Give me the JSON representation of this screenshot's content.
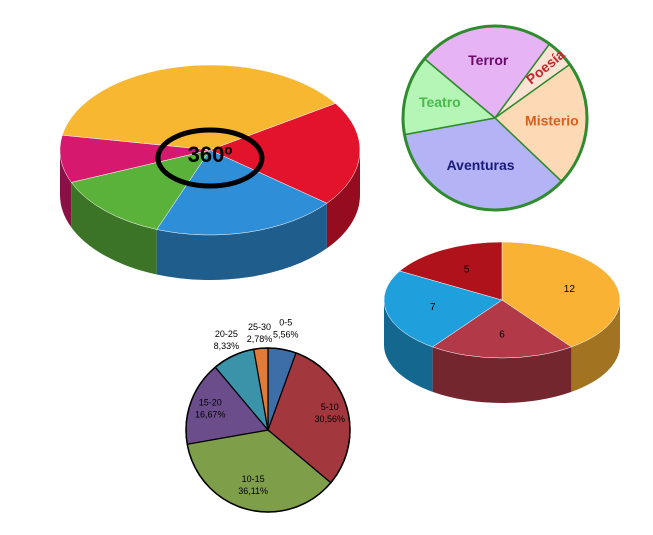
{
  "chart_data": [
    {
      "type": "pie",
      "3d": true,
      "annotation": "360º",
      "values": [
        38,
        20,
        20,
        13,
        9
      ],
      "colors": [
        "#f7b731",
        "#e3132c",
        "#2e8fd8",
        "#5bb23a",
        "#d6196e"
      ]
    },
    {
      "type": "pie",
      "3d": false,
      "categories": [
        "Terror",
        "Poesía",
        "Misterio",
        "Aventuras",
        "Teatro"
      ],
      "values": [
        24,
        5,
        22,
        35,
        14
      ],
      "colors": [
        "#e6b3f5",
        "#fde3d3",
        "#fdd9b5",
        "#b3b3f5",
        "#b5f5b5"
      ]
    },
    {
      "type": "pie",
      "3d": true,
      "values": [
        12,
        6,
        7,
        5
      ],
      "colors": [
        "#f9b233",
        "#b23a48",
        "#1fa0dd",
        "#b0121b"
      ]
    },
    {
      "type": "pie",
      "3d": false,
      "categories": [
        "0-5",
        "5-10",
        "10-15",
        "15-20",
        "20-25",
        "25-30"
      ],
      "values": [
        5.56,
        30.56,
        36.11,
        16.67,
        8.33,
        2.78
      ],
      "value_labels": [
        "5,56%",
        "30,56%",
        "36,11%",
        "16,67%",
        "8,33%",
        "2,78%"
      ],
      "colors": [
        "#3d6ea8",
        "#a3373e",
        "#7f9e4a",
        "#6a4d8a",
        "#3a93a8",
        "#e07b39"
      ]
    }
  ]
}
